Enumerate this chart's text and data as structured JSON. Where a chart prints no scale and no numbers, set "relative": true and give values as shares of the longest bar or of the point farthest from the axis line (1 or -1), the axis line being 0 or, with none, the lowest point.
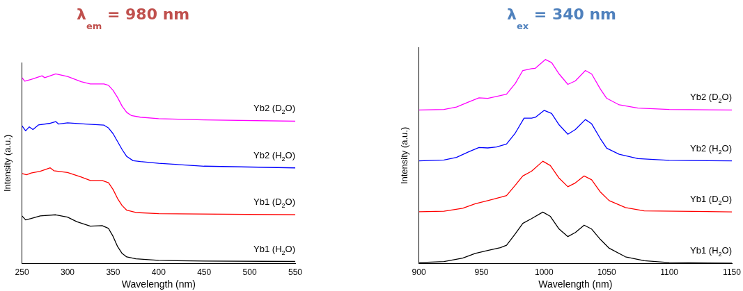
{
  "chart_data": [
    {
      "type": "line",
      "title": "λ$_{em}$ = 980 nm",
      "xlabel": "Wavelength (nm)",
      "ylabel": "Intensity (a.u.)",
      "relative": true,
      "tick_labels": "x",
      "xlim": [
        250,
        550
      ],
      "xticks": [
        250,
        300,
        350,
        400,
        450,
        500,
        550
      ],
      "marker": "none",
      "line_style": "solid",
      "series": [
        {
          "name": "Yb2 (D$_{2}$O)",
          "color": "#ff00ff",
          "x": [
            250,
            253,
            260,
            272,
            275,
            287,
            300,
            315,
            325,
            340,
            345,
            350,
            355,
            360,
            365,
            370,
            380,
            400,
            450,
            550
          ],
          "values": [
            0.98,
            0.962,
            0.971,
            0.99,
            0.98,
            1.0,
            0.986,
            0.959,
            0.947,
            0.947,
            0.94,
            0.913,
            0.875,
            0.829,
            0.797,
            0.781,
            0.772,
            0.764,
            0.758,
            0.751
          ]
        },
        {
          "name": "Yb2 (H$_{2}$O)",
          "color": "#0000ff",
          "x": [
            250,
            254,
            258,
            262,
            268,
            280,
            287,
            290,
            300,
            320,
            340,
            345,
            350,
            355,
            360,
            365,
            372,
            380,
            400,
            450,
            550
          ],
          "values": [
            0.727,
            0.7,
            0.721,
            0.707,
            0.731,
            0.739,
            0.749,
            0.736,
            0.742,
            0.736,
            0.73,
            0.715,
            0.685,
            0.643,
            0.601,
            0.565,
            0.543,
            0.538,
            0.529,
            0.514,
            0.505
          ]
        },
        {
          "name": "Yb1 (D$_{2}$O)",
          "color": "#ff0000",
          "x": [
            250,
            255,
            260,
            270,
            281,
            285,
            300,
            315,
            325,
            338,
            345,
            350,
            355,
            360,
            365,
            375,
            400,
            550
          ],
          "values": [
            0.475,
            0.469,
            0.478,
            0.487,
            0.505,
            0.49,
            0.481,
            0.457,
            0.439,
            0.439,
            0.427,
            0.391,
            0.343,
            0.306,
            0.282,
            0.27,
            0.264,
            0.258
          ]
        },
        {
          "name": "Yb1 (H$_{2}$O)",
          "color": "#000000",
          "x": [
            250,
            254,
            260,
            270,
            287,
            300,
            310,
            325,
            338,
            345,
            350,
            355,
            360,
            365,
            375,
            400,
            450,
            550
          ],
          "values": [
            0.252,
            0.231,
            0.238,
            0.252,
            0.258,
            0.246,
            0.222,
            0.198,
            0.201,
            0.186,
            0.144,
            0.09,
            0.054,
            0.036,
            0.026,
            0.018,
            0.014,
            0.012
          ]
        }
      ]
    },
    {
      "type": "line",
      "title": "λ$_{ex}$ = 340 nm",
      "xlabel": "Wavelength (nm)",
      "ylabel": "Intensity (a.u.)",
      "relative": true,
      "tick_labels": "x",
      "xlim": [
        900,
        1150
      ],
      "xticks": [
        900,
        950,
        1000,
        1050,
        1100,
        1150
      ],
      "marker": "none",
      "line_style": "solid",
      "series": [
        {
          "name": "Yb2 (D$_{2}$O)",
          "color": "#ff00ff",
          "x": [
            900,
            920,
            930,
            940,
            948,
            955,
            962,
            970,
            977,
            983,
            990,
            993,
            1001,
            1006,
            1012,
            1019,
            1025,
            1033,
            1038,
            1045,
            1050,
            1060,
            1075,
            1100,
            1150
          ],
          "values": [
            0.753,
            0.755,
            0.767,
            0.793,
            0.812,
            0.81,
            0.819,
            0.83,
            0.883,
            0.946,
            0.955,
            0.957,
            1.0,
            0.985,
            0.929,
            0.878,
            0.895,
            0.946,
            0.929,
            0.855,
            0.81,
            0.778,
            0.762,
            0.755,
            0.753
          ]
        },
        {
          "name": "Yb2 (H$_{2}$O)",
          "color": "#0000ff",
          "x": [
            900,
            920,
            930,
            940,
            948,
            955,
            962,
            970,
            977,
            984,
            990,
            993,
            1000,
            1006,
            1012,
            1019,
            1025,
            1033,
            1038,
            1045,
            1050,
            1060,
            1075,
            1100,
            1150
          ],
          "values": [
            0.504,
            0.508,
            0.521,
            0.549,
            0.569,
            0.567,
            0.572,
            0.586,
            0.64,
            0.713,
            0.713,
            0.717,
            0.751,
            0.736,
            0.68,
            0.634,
            0.657,
            0.706,
            0.685,
            0.612,
            0.566,
            0.536,
            0.515,
            0.506,
            0.504
          ]
        },
        {
          "name": "Yb1 (D$_{2}$O)",
          "color": "#ff0000",
          "x": [
            900,
            920,
            935,
            945,
            955,
            965,
            970,
            977,
            983,
            990,
            999,
            1005,
            1012,
            1019,
            1025,
            1032,
            1038,
            1045,
            1052,
            1065,
            1080,
            1150
          ],
          "values": [
            0.255,
            0.257,
            0.272,
            0.294,
            0.309,
            0.325,
            0.334,
            0.385,
            0.43,
            0.453,
            0.502,
            0.481,
            0.419,
            0.377,
            0.396,
            0.43,
            0.411,
            0.351,
            0.309,
            0.275,
            0.259,
            0.254
          ]
        },
        {
          "name": "Yb1 (H$_{2}$O)",
          "color": "#000000",
          "x": [
            900,
            920,
            935,
            945,
            955,
            965,
            970,
            977,
            983,
            990,
            999,
            1005,
            1012,
            1019,
            1025,
            1032,
            1038,
            1045,
            1052,
            1065,
            1080,
            1100,
            1150
          ],
          "values": [
            0.006,
            0.011,
            0.028,
            0.051,
            0.065,
            0.079,
            0.091,
            0.147,
            0.198,
            0.221,
            0.253,
            0.232,
            0.17,
            0.133,
            0.153,
            0.189,
            0.17,
            0.119,
            0.076,
            0.034,
            0.015,
            0.006,
            0.003
          ]
        }
      ]
    }
  ]
}
